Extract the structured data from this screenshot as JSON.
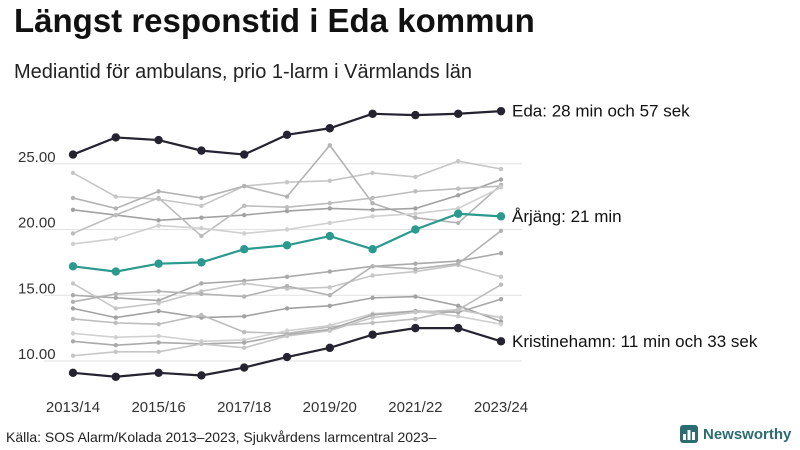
{
  "header": {
    "title": "Längst responstid i Eda kommun",
    "subtitle": "Mediantid för ambulans, prio 1-larm i Värmlands län"
  },
  "footer": {
    "source": "Källa: SOS Alarm/Kolada 2013–2023, Sjukvårdens larmcentral 2023–",
    "brand": "Newsworthy"
  },
  "colors": {
    "background_lines": [
      "#c6c6c6",
      "#b3b3b3",
      "#a2a2a2",
      "#bdbdbd",
      "#d0d0d0",
      "#aaaaaa"
    ],
    "eda": "#24232f",
    "arjang": "#2a9a8f",
    "kristinehamn": "#24232f",
    "grid": "#e2e2e2",
    "brand": "#2b6c72"
  },
  "chart_data": {
    "type": "line",
    "x": [
      "2013/14",
      "2014/15",
      "2015/16",
      "2016/17",
      "2017/18",
      "2018/19",
      "2019/20",
      "2020/21",
      "2021/22",
      "2022/23",
      "2023/24"
    ],
    "xticks": [
      "2013/14",
      "2015/16",
      "2017/18",
      "2019/20",
      "2021/22",
      "2023/24"
    ],
    "yticks": [
      "10.00",
      "15.00",
      "20.00",
      "25.00"
    ],
    "ylim": [
      9.0,
      29.5
    ],
    "grid": "horizontal",
    "title": "Längst responstid i Eda kommun",
    "subtitle": "Mediantid för ambulans, prio 1-larm i Värmlands län",
    "highlighted": [
      {
        "key": "eda",
        "label": "Eda: 28 min och 57 sek",
        "color": "#24232f",
        "values": [
          25.7,
          27.0,
          26.8,
          26.0,
          25.7,
          27.2,
          27.7,
          28.8,
          28.7,
          28.8,
          29.0
        ]
      },
      {
        "key": "arjang",
        "label": "Årjäng: 21 min",
        "color": "#2a9a8f",
        "values": [
          17.2,
          16.8,
          17.4,
          17.5,
          18.5,
          18.8,
          19.5,
          18.5,
          20.0,
          21.2,
          21.0
        ]
      },
      {
        "key": "kristinehamn",
        "label": "Kristinehamn: 11 min och 33 sek",
        "color": "#24232f",
        "values": [
          9.1,
          8.8,
          9.1,
          8.9,
          9.5,
          10.3,
          11.0,
          12.0,
          12.5,
          12.5,
          11.5
        ]
      }
    ],
    "background_series": [
      {
        "values": [
          24.3,
          22.5,
          22.3,
          21.8,
          23.3,
          23.6,
          23.7,
          24.3,
          24.0,
          25.2,
          24.6
        ]
      },
      {
        "values": [
          22.4,
          21.6,
          22.9,
          22.4,
          23.3,
          22.5,
          26.4,
          22.0,
          20.9,
          20.5,
          23.4
        ]
      },
      {
        "values": [
          21.5,
          21.1,
          20.7,
          20.9,
          21.1,
          21.4,
          21.6,
          21.5,
          21.6,
          22.6,
          23.8
        ]
      },
      {
        "values": [
          19.7,
          21.1,
          22.4,
          19.5,
          21.8,
          21.7,
          22.0,
          22.4,
          22.9,
          23.1,
          23.3
        ]
      },
      {
        "values": [
          18.9,
          19.3,
          20.3,
          20.1,
          19.7,
          20.0,
          20.5,
          21.0,
          21.2,
          21.6,
          23.2
        ]
      },
      {
        "values": [
          15.0,
          14.8,
          14.6,
          15.9,
          16.1,
          16.4,
          16.8,
          17.2,
          17.4,
          17.6,
          18.2
        ]
      },
      {
        "values": [
          15.9,
          14.0,
          14.4,
          15.3,
          15.9,
          15.5,
          15.6,
          16.5,
          16.8,
          17.3,
          16.4
        ]
      },
      {
        "values": [
          14.5,
          15.1,
          15.3,
          15.1,
          14.9,
          15.7,
          15.0,
          17.2,
          17.0,
          17.4,
          19.9
        ]
      },
      {
        "values": [
          14.0,
          13.3,
          13.8,
          13.3,
          13.4,
          14.0,
          14.2,
          14.8,
          14.9,
          14.2,
          13.0
        ]
      },
      {
        "values": [
          13.2,
          12.9,
          12.8,
          13.5,
          12.2,
          12.1,
          12.6,
          12.9,
          13.2,
          13.9,
          15.8
        ]
      },
      {
        "values": [
          12.1,
          11.8,
          11.9,
          11.5,
          11.6,
          12.3,
          12.7,
          13.6,
          13.8,
          13.4,
          12.8
        ]
      },
      {
        "values": [
          11.5,
          11.2,
          11.4,
          11.3,
          11.4,
          12.0,
          12.4,
          13.5,
          13.8,
          13.7,
          14.7
        ]
      },
      {
        "values": [
          10.4,
          10.7,
          10.7,
          11.3,
          11.0,
          11.9,
          12.3,
          13.3,
          13.7,
          13.9,
          13.3
        ]
      }
    ]
  }
}
